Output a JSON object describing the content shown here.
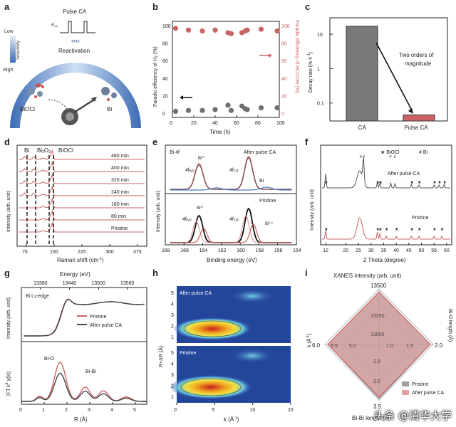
{
  "panel_labels": [
    "a",
    "b",
    "c",
    "d",
    "e",
    "f",
    "g",
    "h",
    "i"
  ],
  "a": {
    "pulse_title": "Pulse CA",
    "eoh": "E",
    "eoh_sub": "Oh",
    "low": "Low",
    "high": "High",
    "selectivity": "Selectivity",
    "reactivation": "Reactivation",
    "biocl": "BiOCl",
    "bi": "Bi"
  },
  "chart_data": [
    {
      "panel": "b",
      "type": "scatter",
      "xlabel": "Time (h)",
      "ylabel_left": "Faradic efficiency of H",
      "ylabel_left_sub": "2",
      "ylabel_left_tail": " (%)",
      "ylabel_right": "Faradic efficiency of HCOOH (%)",
      "x_ticks": [
        "0",
        "20",
        "40",
        "60",
        "80",
        "100"
      ],
      "y_left_ticks": [
        "0",
        "20",
        "40",
        "60",
        "80",
        "100"
      ],
      "y_right_ticks": [
        "0",
        "20",
        "40",
        "60",
        "80",
        "100"
      ],
      "xlim": [
        0,
        100
      ],
      "series": [
        {
          "name": "H2 FE",
          "color": "#6f6f6f",
          "x": [
            3,
            15,
            28,
            40,
            52,
            55,
            65,
            68,
            70,
            83,
            98
          ],
          "y": [
            2,
            3,
            3,
            4,
            9,
            3,
            8,
            5,
            4,
            6,
            6
          ]
        },
        {
          "name": "HCOOH FE",
          "color": "#c86464",
          "x": [
            3,
            15,
            28,
            40,
            52,
            55,
            65,
            68,
            70,
            83,
            98
          ],
          "y": [
            97,
            95,
            94,
            95,
            92,
            91,
            92,
            94,
            95,
            96,
            94
          ]
        }
      ]
    },
    {
      "panel": "c",
      "type": "bar",
      "ylabel": "Decay rate (% h",
      "ylabel_sup": "-1",
      "ylabel_tail": ")",
      "categories": [
        "CA",
        "Pulse CA"
      ],
      "values": [
        17,
        0.045
      ],
      "colors": [
        "#7a7a7a",
        "#c86464"
      ],
      "y_ticks": [
        "0.1",
        "1",
        "10"
      ],
      "ylim": [
        0.03,
        30
      ],
      "annotation": [
        "Two orders of",
        "magnitude"
      ]
    },
    {
      "panel": "d",
      "type": "line",
      "xlabel": "Raman shift (cm",
      "xlabel_sup": "-1",
      "xlabel_tail": ")",
      "ylabel": "Intensity (arb. unit)",
      "x_ticks": [
        "75",
        "150",
        "225",
        "300",
        "375"
      ],
      "xlim": [
        50,
        400
      ],
      "peak_labels": [
        "Bi",
        "Bi",
        "2",
        "O",
        "3",
        "BiOCl"
      ],
      "traces": [
        "480 min",
        "400 min",
        "320 min",
        "240 min",
        "160 min",
        "80 min",
        "Pristine"
      ]
    },
    {
      "panel": "e",
      "type": "line",
      "xlabel": "Binding energy (eV)",
      "ylabel": "Intensity (arb. unit)",
      "x_ticks": [
        "168",
        "166",
        "164",
        "162",
        "160",
        "158",
        "156",
        "154"
      ],
      "xlim": [
        168,
        154
      ],
      "top": {
        "title": "Bi 4f",
        "legend": "After pulse CA",
        "bi3": "Bi",
        "bi3_sup": "3+",
        "f52": "4f",
        "f52_sub": "5/2",
        "f72": "4f",
        "f72_sub": "7/2",
        "bi": "Bi"
      },
      "bottom": {
        "legend": "Pristine",
        "bi3": "Bi",
        "bi3_sup": "3+",
        "f52": "4f",
        "f52_sub": "5/2",
        "f72": "4f",
        "f72_sub": "7/2",
        "bix": "Bi",
        "bix_sup": "3-x"
      }
    },
    {
      "panel": "f",
      "type": "line",
      "xlabel": "2 Theta (degree)",
      "ylabel": "Intensity (arb. unit)",
      "x_ticks": [
        "12",
        "20",
        "25",
        "30",
        "35",
        "40",
        "45",
        "50",
        "55",
        "60"
      ],
      "legend_star": "★ BiOCl",
      "legend_hash": "# Bi",
      "top_label": "After pulse CA",
      "bottom_label": "Pristine"
    },
    {
      "panel": "g",
      "type": "line",
      "top_axis_title": "Energy (eV)",
      "top_ticks": [
        "13380",
        "13440",
        "13500",
        "13560"
      ],
      "edge_label": "Bi L",
      "edge_sub": "3",
      "edge_tail": "-edge",
      "ylabel_top": "Intensity (arb. unit)",
      "ylabel_bottom": "|FT k",
      "ylabel_bottom_sup": "3",
      "ylabel_bottom_tail": " χ(k)|",
      "xlabel": "R (Å)",
      "x_ticks": [
        "0",
        "1",
        "2",
        "3",
        "4",
        "5"
      ],
      "legend": [
        {
          "name": "Pristine",
          "color": "#c86464"
        },
        {
          "name": "After pulse CA",
          "color": "#444444"
        }
      ],
      "bio": "Bi-O",
      "bibi": "Bi-Bi"
    },
    {
      "panel": "h",
      "type": "heatmap",
      "xlabel": "k (Å",
      "xlabel_sup": "-1",
      "xlabel_tail": ")",
      "ylabel": "R+ΔR (Å)",
      "x_ticks": [
        "0",
        "5",
        "10",
        "15"
      ],
      "y_ticks": [
        "1",
        "2",
        "3",
        "4",
        "5"
      ],
      "top_label": "After pulse CA",
      "bottom_label": "Pristine"
    },
    {
      "panel": "i",
      "type": "radar",
      "title": "XANES intensity (arb. unit)",
      "axis_top_ticks": [
        "13500",
        "13250",
        "13000"
      ],
      "axis_left_title": "k (Å",
      "axis_left_sup": "-1",
      "axis_left_tail": ")",
      "axis_left_ticks": [
        "6.0",
        "5.5",
        "5.0"
      ],
      "axis_right_title": "Bi-O length (Å)",
      "axis_right_ticks": [
        "1.0",
        "1.5",
        "2.0"
      ],
      "axis_bottom_title": "Bi-Bi length (Å)",
      "axis_bottom_ticks": [
        "2.5",
        "3.0",
        "3.5"
      ],
      "legend": [
        {
          "name": "Pristine",
          "color": "#a0a0a0"
        },
        {
          "name": "After pulse CA",
          "color": "#e6a0a0"
        }
      ]
    }
  ],
  "watermark": "头条 @清华大学"
}
